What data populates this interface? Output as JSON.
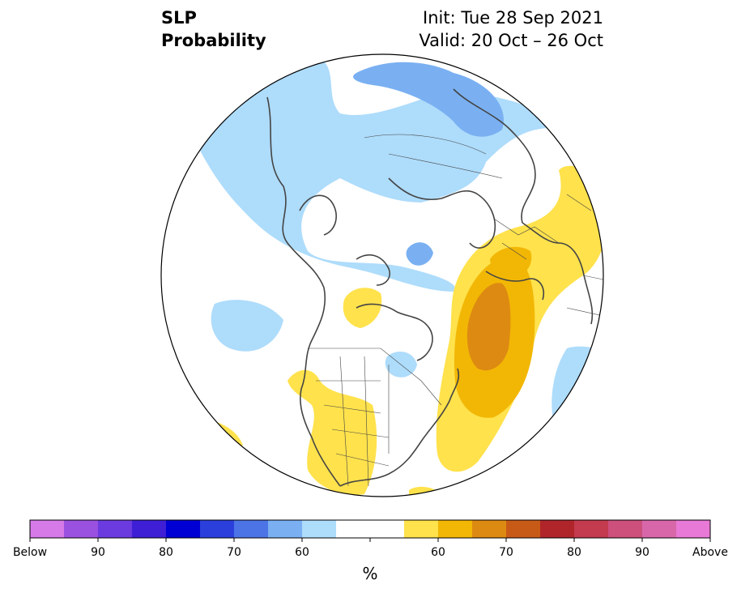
{
  "title": {
    "variable": "SLP",
    "subtitle": "Probability",
    "init": "Init: Tue 28 Sep 2021",
    "valid": "Valid: 20 Oct – 26 Oct"
  },
  "colorbar": {
    "unit": "%",
    "bins": [
      {
        "color": "#d67ae8"
      },
      {
        "color": "#9b51e0"
      },
      {
        "color": "#6b3be0"
      },
      {
        "color": "#3e1fd6"
      },
      {
        "color": "#0000d4"
      },
      {
        "color": "#2a3fdc"
      },
      {
        "color": "#4c74e6"
      },
      {
        "color": "#7ab0f2"
      },
      {
        "color": "#aedcfb"
      },
      {
        "color": "#ffffff"
      },
      {
        "color": "#ffffff"
      },
      {
        "color": "#ffe24c"
      },
      {
        "color": "#f2b705"
      },
      {
        "color": "#dd8a12"
      },
      {
        "color": "#c85a18"
      },
      {
        "color": "#b0252a"
      },
      {
        "color": "#c43a4e"
      },
      {
        "color": "#cc4f7c"
      },
      {
        "color": "#d867aa"
      },
      {
        "color": "#e879d6"
      }
    ],
    "tick_labels": [
      {
        "text": "Below",
        "bin": 0
      },
      {
        "text": "90",
        "bin": 2
      },
      {
        "text": "80",
        "bin": 4
      },
      {
        "text": "70",
        "bin": 6
      },
      {
        "text": "60",
        "bin": 8
      },
      {
        "text": "60",
        "bin": 12
      },
      {
        "text": "70",
        "bin": 14
      },
      {
        "text": "80",
        "bin": 16
      },
      {
        "text": "90",
        "bin": 18
      },
      {
        "text": "Above",
        "bin": 20
      }
    ]
  },
  "map": {
    "projection": "north-polar-stereographic",
    "ocean_color": "#ffffff",
    "coastline_color": "#444444",
    "categories": {
      "below_light": "#aedcfb",
      "below_medium": "#7ab0f2",
      "above_light": "#ffe24c",
      "above_medium": "#f2b705",
      "above_strong": "#dd8a12"
    }
  }
}
